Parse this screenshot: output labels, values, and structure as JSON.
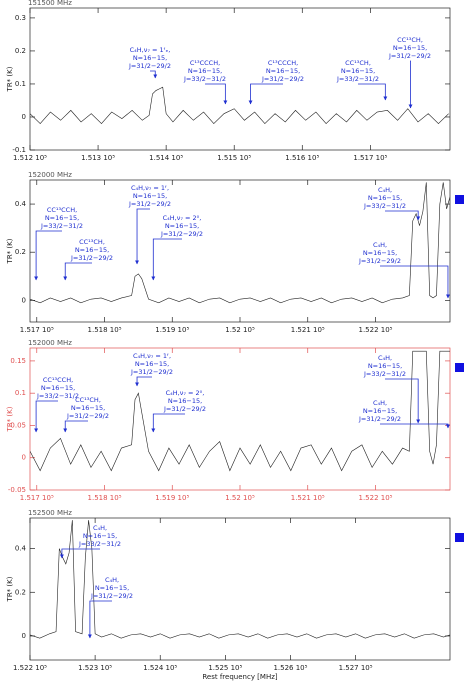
{
  "chart_data": [
    {
      "type": "line",
      "title": "151500 MHz",
      "ylabel": "TR* (K)",
      "axis_color": "#222222",
      "line_color": "#222222",
      "annotation_color": "#1f2fd0",
      "xlim": [
        151200,
        151817
      ],
      "ylim": [
        -0.1,
        0.33
      ],
      "xticks": [
        {
          "value": 151200,
          "label": "1.512 10⁵"
        },
        {
          "value": 151300,
          "label": "1.513 10⁵"
        },
        {
          "value": 151400,
          "label": "1.514 10⁵"
        },
        {
          "value": 151500,
          "label": "1.515 10⁵"
        },
        {
          "value": 151600,
          "label": "1.516 10⁵"
        },
        {
          "value": 151700,
          "label": "1.517 10⁵"
        }
      ],
      "yticks": [
        -0.1,
        0,
        0.1,
        0.2,
        0.3
      ],
      "x": [
        151200,
        151215,
        151230,
        151245,
        151260,
        151275,
        151290,
        151305,
        151320,
        151335,
        151350,
        151365,
        151375,
        151380,
        151385,
        151390,
        151395,
        151400,
        151410,
        151425,
        151440,
        151455,
        151470,
        151485,
        151500,
        151515,
        151530,
        151545,
        151560,
        151575,
        151590,
        151605,
        151620,
        151635,
        151650,
        151665,
        151680,
        151695,
        151710,
        151725,
        151740,
        151755,
        151770,
        151785,
        151800,
        151815
      ],
      "values": [
        0.01,
        -0.02,
        0.015,
        -0.01,
        0.02,
        -0.015,
        0.01,
        -0.02,
        0.015,
        -0.005,
        0.02,
        -0.01,
        0.005,
        0.07,
        0.08,
        0.085,
        0.09,
        0.01,
        -0.015,
        0.02,
        -0.01,
        0.015,
        -0.02,
        0.01,
        0.025,
        -0.01,
        0.015,
        -0.02,
        0.01,
        -0.015,
        0.02,
        -0.01,
        0.015,
        -0.02,
        0.01,
        -0.015,
        0.02,
        -0.01,
        0.015,
        0.02,
        -0.01,
        0.025,
        -0.015,
        0.01,
        -0.02,
        0.01
      ],
      "annotations": [
        {
          "lines": [
            "C₄H,ν₇ = 1ᶠₑ,",
            "N=16−15,",
            "J=31/2−29/2"
          ],
          "freq": 151384
        },
        {
          "lines": [
            "C¹³CCCH,",
            "N=16−15,",
            "J=33/2−31/2"
          ],
          "freq": 151487
        },
        {
          "lines": [
            "C¹³CCCH,",
            "N=16−15,",
            "J=31/2−29/2"
          ],
          "freq": 151524
        },
        {
          "lines": [
            "CC¹³CH,",
            "N=16−15,",
            "J=33/2−31/2"
          ],
          "freq": 151722
        },
        {
          "lines": [
            "CC¹³CH,",
            "N=16−15,",
            "J=31/2−29/2"
          ],
          "freq": 151759
        }
      ]
    },
    {
      "type": "line",
      "title": "152000 MHz",
      "ylabel": "TR* (K)",
      "axis_color": "#222222",
      "line_color": "#222222",
      "annotation_color": "#1f2fd0",
      "xlim": [
        151690,
        152310
      ],
      "ylim": [
        -0.09,
        0.5
      ],
      "xticks": [
        {
          "value": 151700,
          "label": "1.517 10⁵"
        },
        {
          "value": 151800,
          "label": "1.518 10⁵"
        },
        {
          "value": 151900,
          "label": "1.519 10⁵"
        },
        {
          "value": 152000,
          "label": "1.52 10⁵"
        },
        {
          "value": 152100,
          "label": "1.521 10⁵"
        },
        {
          "value": 152200,
          "label": "1.522 10⁵"
        }
      ],
      "yticks": [
        0,
        0.2,
        0.4
      ],
      "x": [
        151690,
        151705,
        151720,
        151735,
        151750,
        151765,
        151780,
        151795,
        151810,
        151825,
        151840,
        151845,
        151850,
        151855,
        151865,
        151880,
        151895,
        151910,
        151925,
        151940,
        151955,
        151970,
        151985,
        152000,
        152015,
        152030,
        152045,
        152060,
        152075,
        152090,
        152105,
        152120,
        152135,
        152150,
        152165,
        152180,
        152195,
        152210,
        152225,
        152240,
        152250,
        152255,
        152260,
        152265,
        152270,
        152275,
        152280,
        152285,
        152290,
        152295,
        152300,
        152305,
        152310
      ],
      "values": [
        0.005,
        -0.01,
        0.01,
        -0.005,
        0.01,
        -0.01,
        0.005,
        0.01,
        -0.005,
        0.01,
        0.02,
        0.1,
        0.11,
        0.09,
        0.005,
        -0.01,
        0.01,
        -0.005,
        0.01,
        -0.01,
        0.005,
        0.01,
        -0.01,
        0.005,
        0.01,
        -0.005,
        0.01,
        -0.01,
        0.005,
        0.01,
        -0.005,
        0.01,
        -0.01,
        0.005,
        0.01,
        -0.005,
        0.01,
        -0.01,
        0.005,
        0.01,
        0.02,
        0.33,
        0.36,
        0.31,
        0.37,
        0.49,
        0.02,
        0.01,
        0.02,
        0.4,
        0.49,
        0.38,
        0.43
      ],
      "annotations": [
        {
          "lines": [
            "CC¹³CCH,",
            "N=16−15,",
            "J=33/2−31/2"
          ],
          "freq": 151699
        },
        {
          "lines": [
            "CC¹³CH,",
            "N=16−15,",
            "J=31/2−29/2"
          ],
          "freq": 151742
        },
        {
          "lines": [
            "C₄H,ν₇ = 1ᶠ,",
            "N=16−15,",
            "J=31/2−29/2"
          ],
          "freq": 151848
        },
        {
          "lines": [
            "C₄H,ν₇ = 2⁰,",
            "N=16−15,",
            "J=31/2−29/2"
          ],
          "freq": 151872
        },
        {
          "lines": [
            "C₄H,",
            "N=16−15,",
            "J=33/2−31/2"
          ],
          "freq": 152263
        },
        {
          "lines": [
            "C₄H,",
            "N=16−15,",
            "J=31/2−29/2"
          ],
          "freq": 152307
        }
      ]
    },
    {
      "type": "line",
      "title": "152000 MHz",
      "ylabel": "TR* (K)",
      "axis_color": "#e05050",
      "line_color": "#222222",
      "annotation_color": "#1f2fd0",
      "xlim": [
        151690,
        152310
      ],
      "ylim": [
        -0.05,
        0.17
      ],
      "xticks": [
        {
          "value": 151700,
          "label": "1.517 10⁵"
        },
        {
          "value": 151800,
          "label": "1.518 10⁵"
        },
        {
          "value": 151900,
          "label": "1.519 10⁵"
        },
        {
          "value": 152000,
          "label": "1.52 10⁵"
        },
        {
          "value": 152100,
          "label": "1.521 10⁵"
        },
        {
          "value": 152200,
          "label": "1.522 10⁵"
        }
      ],
      "yticks": [
        -0.05,
        0,
        0.05,
        0.1,
        0.15
      ],
      "x": [
        151690,
        151705,
        151720,
        151735,
        151750,
        151765,
        151780,
        151795,
        151810,
        151825,
        151840,
        151845,
        151850,
        151855,
        151865,
        151880,
        151895,
        151910,
        151925,
        151940,
        151955,
        151970,
        151985,
        152000,
        152015,
        152030,
        152045,
        152060,
        152075,
        152090,
        152105,
        152120,
        152135,
        152150,
        152165,
        152180,
        152195,
        152210,
        152225,
        152240,
        152250,
        152255,
        152260,
        152265,
        152270,
        152275,
        152280,
        152285,
        152290,
        152295,
        152300,
        152305,
        152310
      ],
      "values": [
        0.01,
        -0.02,
        0.015,
        0.03,
        -0.01,
        0.02,
        -0.015,
        0.01,
        -0.02,
        0.015,
        0.02,
        0.09,
        0.1,
        0.07,
        0.01,
        -0.02,
        0.015,
        -0.01,
        0.02,
        -0.015,
        0.01,
        0.025,
        -0.02,
        0.015,
        -0.01,
        0.02,
        -0.015,
        0.01,
        -0.02,
        0.015,
        0.02,
        -0.01,
        0.015,
        -0.02,
        0.01,
        0.02,
        -0.015,
        0.01,
        -0.01,
        0.015,
        0.01,
        0.165,
        0.165,
        0.165,
        0.165,
        0.165,
        0.01,
        -0.01,
        0.02,
        0.165,
        0.165,
        0.165,
        0.165
      ],
      "annotations": [
        {
          "lines": [
            "CC¹³CCH,",
            "N=16−15,",
            "J=33/2−31/2"
          ],
          "freq": 151699
        },
        {
          "lines": [
            "CC¹³CH,",
            "N=16−15,",
            "J=31/2−29/2"
          ],
          "freq": 151742
        },
        {
          "lines": [
            "C₄H,ν₇ = 1ᶠ,",
            "N=16−15,",
            "J=31/2−29/2"
          ],
          "freq": 151848
        },
        {
          "lines": [
            "C₄H,ν₇ = 2⁰,",
            "N=16−15,",
            "J=31/2−29/2"
          ],
          "freq": 151872
        },
        {
          "lines": [
            "C₄H,",
            "N=16−15,",
            "J=33/2−31/2"
          ],
          "freq": 152263
        },
        {
          "lines": [
            "C₄H,",
            "N=16−15,",
            "J=31/2−29/2"
          ],
          "freq": 152307
        }
      ]
    },
    {
      "type": "line",
      "title": "152500 MHz",
      "ylabel": "TR* (K)",
      "xlabel": "Rest frequency [MHz]",
      "axis_color": "#222222",
      "line_color": "#222222",
      "annotation_color": "#1f2fd0",
      "xlim": [
        152200,
        152845
      ],
      "ylim": [
        -0.11,
        0.54
      ],
      "xticks": [
        {
          "value": 152200,
          "label": "1.522 10⁵"
        },
        {
          "value": 152300,
          "label": "1.523 10⁵"
        },
        {
          "value": 152400,
          "label": "1.524 10⁵"
        },
        {
          "value": 152500,
          "label": "1.525 10⁵"
        },
        {
          "value": 152600,
          "label": "1.526 10⁵"
        },
        {
          "value": 152700,
          "label": "1.527 10⁵"
        }
      ],
      "yticks": [
        0,
        0.2,
        0.4
      ],
      "x": [
        152200,
        152215,
        152230,
        152240,
        152245,
        152250,
        152255,
        152260,
        152265,
        152270,
        152280,
        152285,
        152290,
        152295,
        152300,
        152310,
        152325,
        152340,
        152355,
        152370,
        152385,
        152400,
        152415,
        152430,
        152445,
        152460,
        152475,
        152490,
        152505,
        152520,
        152535,
        152550,
        152565,
        152580,
        152595,
        152610,
        152625,
        152640,
        152655,
        152670,
        152685,
        152700,
        152715,
        152730,
        152745,
        152760,
        152775,
        152790,
        152805,
        152820,
        152835,
        152845
      ],
      "values": [
        0.005,
        -0.01,
        0.01,
        0.02,
        0.4,
        0.36,
        0.33,
        0.38,
        0.53,
        0.02,
        0.01,
        0.36,
        0.53,
        0.4,
        0.01,
        -0.005,
        0.01,
        -0.01,
        0.005,
        0.01,
        -0.005,
        0.01,
        -0.01,
        0.005,
        0.01,
        -0.005,
        0.01,
        -0.01,
        0.005,
        0.01,
        -0.005,
        0.01,
        -0.01,
        0.005,
        0.01,
        -0.005,
        0.01,
        -0.01,
        0.005,
        0.01,
        -0.005,
        0.01,
        -0.01,
        0.005,
        0.01,
        -0.005,
        0.01,
        -0.01,
        0.005,
        0.01,
        -0.005,
        0.005
      ],
      "annotations": [
        {
          "lines": [
            "C₄H,",
            "N=16−15,",
            "J=33/2−31/2"
          ],
          "freq": 152249
        },
        {
          "lines": [
            "C₄H,",
            "N=16−15,",
            "J=31/2−29/2"
          ],
          "freq": 152292
        }
      ]
    }
  ]
}
